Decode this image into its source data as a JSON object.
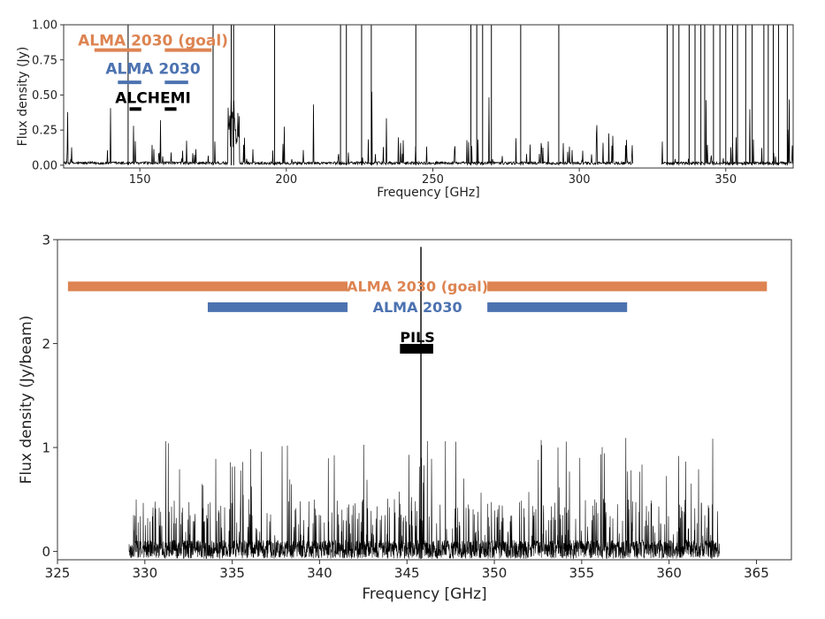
{
  "chart_data": [
    {
      "type": "line",
      "xlabel": "Frequency  [GHz]",
      "ylabel": "Flux density  (Jy)",
      "xlim": [
        124,
        373
      ],
      "ylim": [
        -0.02,
        1.0
      ],
      "x_ticks": [
        "150",
        "200",
        "250",
        "300",
        "350"
      ],
      "y_ticks": [
        "0.00",
        "0.25",
        "0.50",
        "0.75",
        "1.00"
      ],
      "gaps": [
        [
          318.5,
          328
        ]
      ],
      "strong_lines": [
        146,
        175,
        181.2,
        182,
        196,
        218.5,
        220.5,
        225.7,
        229,
        244.2,
        263,
        265,
        267,
        270,
        280,
        293,
        330,
        332,
        334,
        337.5,
        339.5,
        341.5,
        342.8,
        345.8,
        348,
        350,
        352.3,
        354,
        356.8,
        359,
        363,
        364.5,
        366.2,
        368,
        371
      ],
      "bands": [
        {
          "name": "ALMA 2030 (goal)",
          "color": "#dd8452",
          "level": 0.82,
          "ranges": [
            [
              134.5,
              150.5
            ],
            [
              158.5,
              174.5
            ]
          ],
          "label_x": 154.5,
          "label_y": 0.89
        },
        {
          "name": "ALMA 2030",
          "color": "#4c72b0",
          "level": 0.59,
          "ranges": [
            [
              142.5,
              150.5
            ],
            [
              158.5,
              166.5
            ]
          ],
          "label_x": 154.5,
          "label_y": 0.69
        },
        {
          "name": "ALCHEMI",
          "color": "#000000",
          "level": 0.4,
          "ranges": [
            [
              146.5,
              150.5
            ],
            [
              158.5,
              162.5
            ]
          ],
          "label_x": 154.5,
          "label_y": 0.48
        }
      ]
    },
    {
      "type": "line",
      "xlabel": "Frequency  [GHz]",
      "ylabel": "Flux density  (Jy/beam)",
      "xlim": [
        325,
        367
      ],
      "ylim": [
        -0.08,
        3.0
      ],
      "x_ticks": [
        "325",
        "330",
        "335",
        "340",
        "345",
        "350",
        "355",
        "360",
        "365"
      ],
      "y_ticks": [
        "0",
        "1",
        "2",
        "3"
      ],
      "data_range": [
        329.1,
        362.9
      ],
      "peak": {
        "x": 345.8,
        "y": 2.93
      },
      "bands": [
        {
          "name": "ALMA 2030 (goal)",
          "color": "#dd8452",
          "level": 2.55,
          "ranges": [
            [
              325.6,
              341.6
            ],
            [
              349.6,
              365.6
            ]
          ],
          "label_x": 345.6,
          "label_y": 2.55
        },
        {
          "name": "ALMA 2030",
          "color": "#4c72b0",
          "level": 2.35,
          "ranges": [
            [
              333.6,
              341.6
            ],
            [
              349.6,
              357.6
            ]
          ],
          "label_x": 345.6,
          "label_y": 2.35
        },
        {
          "name": "PILS",
          "color": "#000000",
          "level": 1.95,
          "ranges": [
            [
              344.6,
              346.5
            ]
          ],
          "label_x": 345.6,
          "label_y": 2.06
        }
      ]
    }
  ]
}
